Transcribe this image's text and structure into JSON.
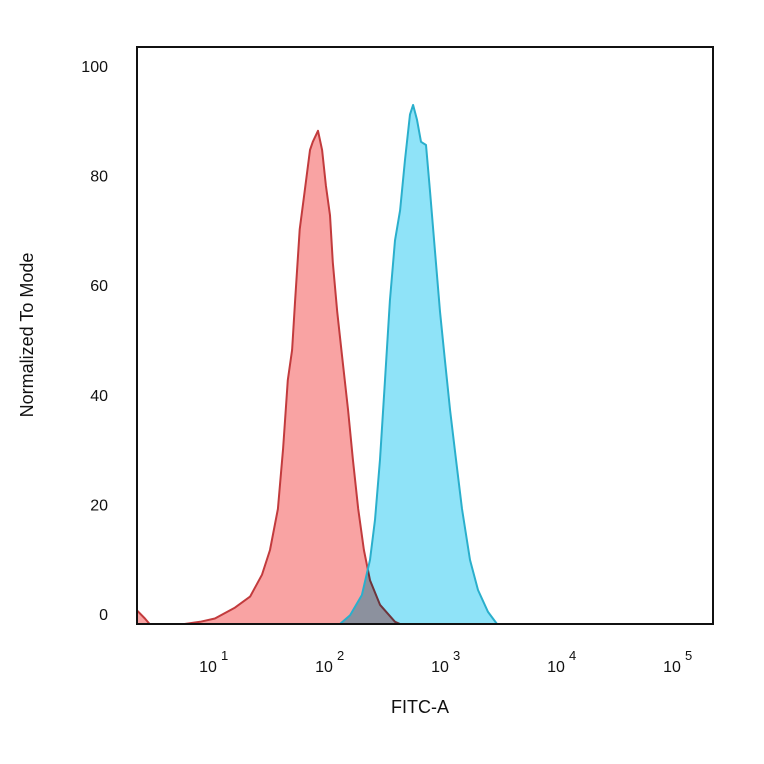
{
  "chart_data": {
    "type": "area",
    "title": "",
    "xlabel": "FITC-A",
    "ylabel": "Normalized To Mode",
    "x_scale": "log",
    "xlim": [
      2.25,
      205000
    ],
    "ylim": [
      0,
      105
    ],
    "grid": false,
    "legend": "none",
    "x_ticks": [
      {
        "base": "10",
        "exp": "1",
        "value": 10
      },
      {
        "base": "10",
        "exp": "2",
        "value": 100
      },
      {
        "base": "10",
        "exp": "3",
        "value": 1000
      },
      {
        "base": "10",
        "exp": "4",
        "value": 10000
      },
      {
        "base": "10",
        "exp": "5",
        "value": 100000
      }
    ],
    "y_ticks": [
      "0",
      "20",
      "40",
      "60",
      "80",
      "100"
    ],
    "y_tick_values": [
      0,
      20,
      40,
      60,
      80,
      100
    ],
    "series": [
      {
        "fill": "#f9a3a3",
        "stroke": "#c23b3d",
        "x": [
          2.25,
          2.64,
          2.9,
          5.8,
          7.9,
          10.6,
          15.8,
          21.3,
          27,
          31.6,
          37,
          41,
          45,
          49,
          52,
          57,
          63,
          70,
          74,
          82,
          89,
          96,
          104,
          110,
          120,
          132,
          149,
          164,
          182,
          204,
          230,
          281,
          378,
          418
        ],
        "y": [
          2.5,
          1,
          0,
          0,
          0.4,
          1,
          3,
          5,
          9,
          13.5,
          21,
          32,
          44.5,
          50,
          59,
          72,
          79,
          86.5,
          88,
          90,
          86.5,
          80,
          74.6,
          66,
          57,
          49,
          39,
          30,
          21,
          13.5,
          8,
          3.5,
          0.4,
          0
        ]
      },
      {
        "fill": "#8fe3f8",
        "stroke": "#2aafcc",
        "x": [
          127,
          155,
          196,
          230,
          254,
          281,
          310,
          342,
          378,
          418,
          461,
          509,
          541,
          585,
          634,
          700,
          757,
          836,
          924,
          1021,
          1128,
          1269,
          1429,
          1675,
          1963,
          2393,
          2864
        ],
        "y": [
          0,
          1.6,
          5.3,
          11.7,
          19,
          30,
          44.5,
          59,
          70,
          75.5,
          84.7,
          93,
          94.7,
          92,
          88,
          87.4,
          79,
          68,
          57,
          48,
          39,
          30,
          21,
          11.7,
          6.2,
          2.2,
          0
        ]
      }
    ]
  }
}
